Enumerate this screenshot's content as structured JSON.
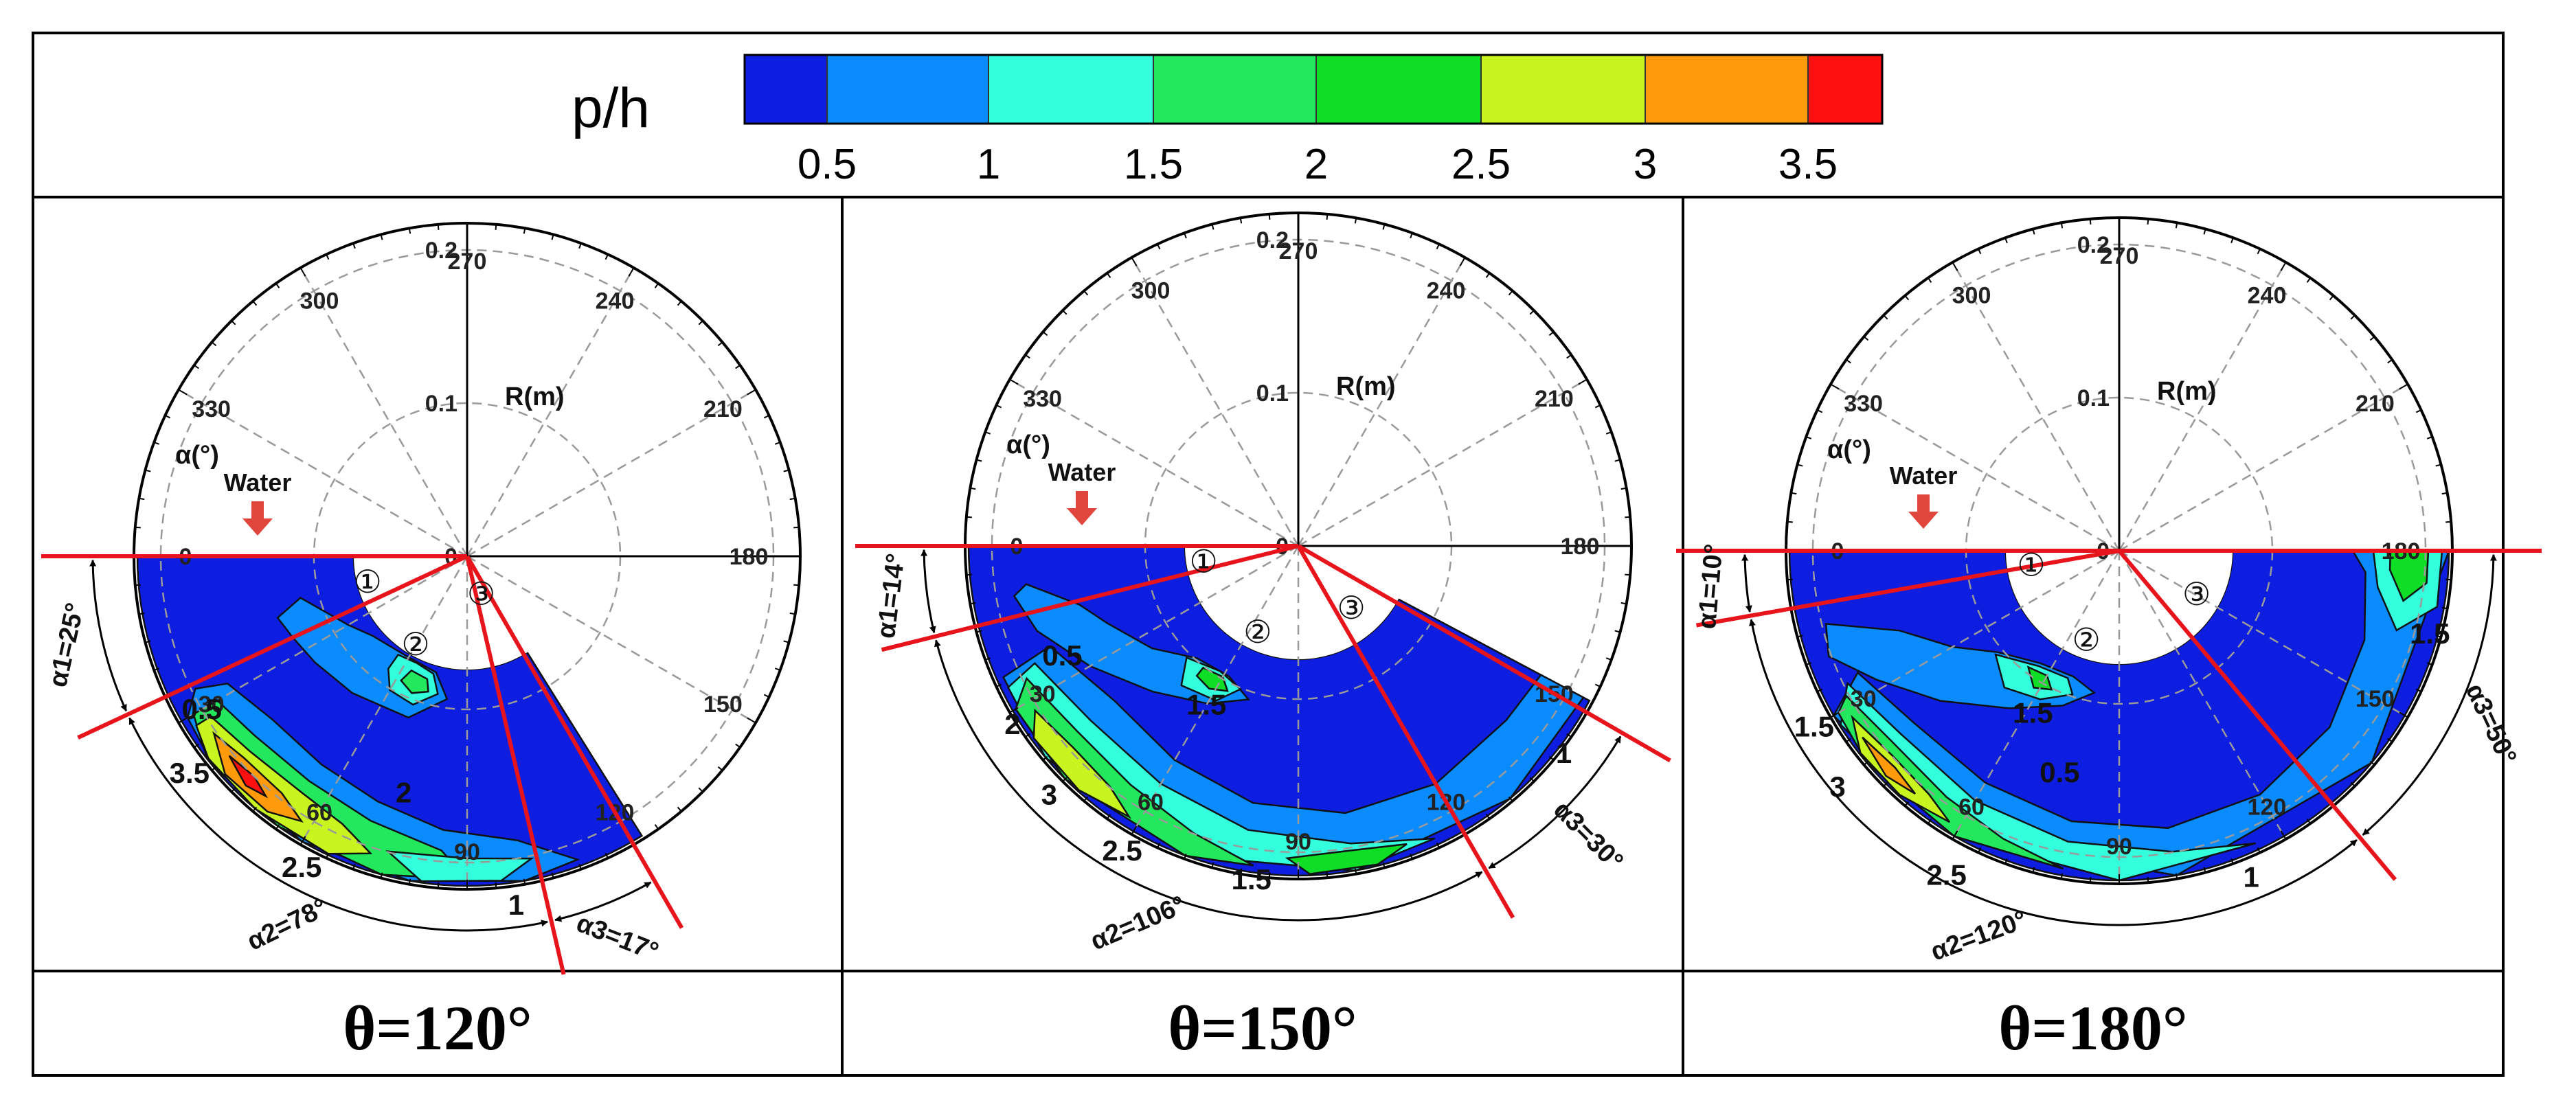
{
  "chart_data": [
    {
      "type": "contour",
      "colorbar": {
        "label": "p/h",
        "colors": [
          "#0d1ee0",
          "#0a8cff",
          "#33ffdd",
          "#23e85d",
          "#0ede25",
          "#c8f51f",
          "#ff9a0a",
          "#ff1010"
        ],
        "tick_labels": [
          "0.5",
          "1",
          "1.5",
          "2",
          "2.5",
          "3",
          "3.5"
        ]
      }
    },
    {
      "type": "polar-contour",
      "panel_title": "θ=120°",
      "angle_axis": {
        "label": "α(°)",
        "ticks": [
          "0",
          "30",
          "60",
          "90",
          "120",
          "150",
          "180",
          "210",
          "240",
          "270",
          "300",
          "330"
        ]
      },
      "radial_axis": {
        "label": "R(m)",
        "ticks": [
          "0.1",
          "0.2"
        ],
        "center_label": "0"
      },
      "annotation": "Water",
      "zones": [
        "①",
        "②",
        "③"
      ],
      "angle_spans": [
        {
          "label": "α1=25°",
          "from": 0,
          "to": 25
        },
        {
          "label": "α2=78°",
          "from": 25,
          "to": 103
        },
        {
          "label": "α3=17°",
          "from": 103,
          "to": 120
        }
      ],
      "contour_labels": [
        {
          "text": "0.5",
          "angle": 30,
          "r": 0.2
        },
        {
          "text": "2",
          "angle": 75,
          "r": 0.16
        },
        {
          "text": "3.5",
          "angle": 38,
          "r": 0.23
        },
        {
          "text": "2.5",
          "angle": 62,
          "r": 0.23
        },
        {
          "text": "1",
          "angle": 98,
          "r": 0.23
        }
      ]
    },
    {
      "type": "polar-contour",
      "panel_title": "θ=150°",
      "angle_axis": {
        "label": "α(°)",
        "ticks": [
          "0",
          "30",
          "60",
          "90",
          "120",
          "150",
          "180",
          "210",
          "240",
          "270",
          "300",
          "330"
        ]
      },
      "radial_axis": {
        "label": "R(m)",
        "ticks": [
          "0.1",
          "0.2"
        ],
        "center_label": "0"
      },
      "annotation": "Water",
      "zones": [
        "①",
        "②",
        "③"
      ],
      "angle_spans": [
        {
          "label": "α1=14°",
          "from": 0,
          "to": 14
        },
        {
          "label": "α2=106°",
          "from": 14,
          "to": 120
        },
        {
          "label": "α3=30°",
          "from": 120,
          "to": 150
        }
      ],
      "contour_labels": [
        {
          "text": "0.5",
          "angle": 25,
          "r": 0.17
        },
        {
          "text": "1.5",
          "angle": 60,
          "r": 0.12
        },
        {
          "text": "2",
          "angle": 32,
          "r": 0.22
        },
        {
          "text": "3",
          "angle": 45,
          "r": 0.23
        },
        {
          "text": "2.5",
          "angle": 60,
          "r": 0.23
        },
        {
          "text": "1.5",
          "angle": 82,
          "r": 0.22
        },
        {
          "text": "1",
          "angle": 142,
          "r": 0.22
        }
      ]
    },
    {
      "type": "polar-contour",
      "panel_title": "θ=180°",
      "angle_axis": {
        "label": "α(°)",
        "ticks": [
          "0",
          "30",
          "60",
          "90",
          "120",
          "150",
          "180",
          "210",
          "240",
          "270",
          "300",
          "330"
        ]
      },
      "radial_axis": {
        "label": "R(m)",
        "ticks": [
          "0.1",
          "0.2"
        ],
        "center_label": "0"
      },
      "annotation": "Water",
      "zones": [
        "①",
        "②",
        "③"
      ],
      "angle_spans": [
        {
          "label": "α1=10°",
          "from": 0,
          "to": 10
        },
        {
          "label": "α2=120°",
          "from": 10,
          "to": 130
        },
        {
          "label": "α3=50°",
          "from": 130,
          "to": 180
        }
      ],
      "contour_labels": [
        {
          "text": "1.5",
          "angle": 30,
          "r": 0.23
        },
        {
          "text": "1.5",
          "angle": 62,
          "r": 0.12
        },
        {
          "text": "0.5",
          "angle": 75,
          "r": 0.15
        },
        {
          "text": "3",
          "angle": 40,
          "r": 0.24
        },
        {
          "text": "2.5",
          "angle": 62,
          "r": 0.24
        },
        {
          "text": "1",
          "angle": 112,
          "r": 0.23
        },
        {
          "text": "1.5",
          "angle": 165,
          "r": 0.21
        }
      ]
    }
  ]
}
